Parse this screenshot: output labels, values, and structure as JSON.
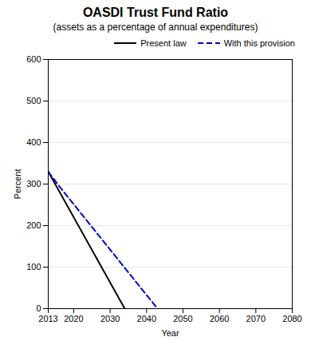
{
  "chart_data": {
    "type": "line",
    "title": "OASDI Trust Fund Ratio",
    "subtitle": "(assets as a percentage of annual expenditures)",
    "xlabel": "Year",
    "ylabel": "Percent",
    "xlim": [
      2013,
      2080
    ],
    "ylim": [
      0,
      600
    ],
    "xticks": [
      2013,
      2020,
      2030,
      2040,
      2050,
      2060,
      2070,
      2080
    ],
    "yticks": [
      0,
      100,
      200,
      300,
      400,
      500,
      600
    ],
    "grid": true,
    "legend": "upper right",
    "series": [
      {
        "name": "Present law",
        "color": "#000000",
        "line_style": "solid",
        "x": [
          2013,
          2034
        ],
        "values": [
          330,
          0
        ]
      },
      {
        "name": "With this provision",
        "color": "#0000cc",
        "line_style": "dashed",
        "x": [
          2013,
          2016,
          2043
        ],
        "values": [
          330,
          295,
          0
        ]
      }
    ]
  }
}
